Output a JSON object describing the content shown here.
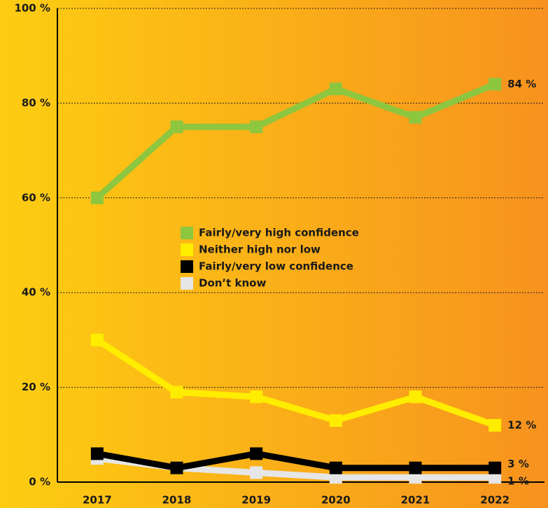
{
  "chart_data": {
    "type": "line",
    "categories": [
      "2017",
      "2018",
      "2019",
      "2020",
      "2021",
      "2022"
    ],
    "series": [
      {
        "name": "Fairly/very high confidence",
        "color": "#8dc63f",
        "values": [
          60,
          75,
          75,
          83,
          77,
          84
        ],
        "value_labels": [
          null,
          null,
          null,
          null,
          null,
          "84 %"
        ]
      },
      {
        "name": "Neither high nor low",
        "color": "#ffed00",
        "values": [
          30,
          19,
          18,
          13,
          18,
          12
        ],
        "value_labels": [
          null,
          null,
          null,
          null,
          null,
          "12 %"
        ]
      },
      {
        "name": "Fairly/very low confidence",
        "color": "#000000",
        "values": [
          6,
          3,
          6,
          3,
          3,
          3
        ],
        "value_labels": [
          null,
          null,
          null,
          null,
          null,
          "3 %"
        ]
      },
      {
        "name": "Don’t know",
        "color": "#e6e6e6",
        "values": [
          5,
          3,
          2,
          1,
          1,
          1
        ],
        "value_labels": [
          null,
          null,
          null,
          null,
          null,
          "1 %"
        ]
      }
    ],
    "ylim": [
      0,
      100
    ],
    "yticks": [
      {
        "value": 0,
        "label": "0 %"
      },
      {
        "value": 20,
        "label": "20 %"
      },
      {
        "value": 40,
        "label": "40 %"
      },
      {
        "value": 60,
        "label": "60 %"
      },
      {
        "value": 80,
        "label": "80 %"
      },
      {
        "value": 100,
        "label": "100 %"
      }
    ],
    "grid": true
  }
}
